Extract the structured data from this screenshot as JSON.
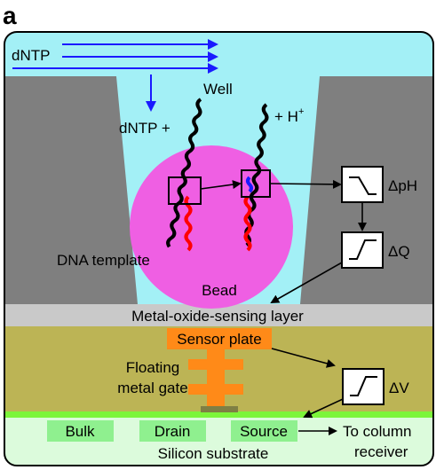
{
  "panel_letter": "a",
  "labels": {
    "dntp_flow": "dNTP",
    "well": "Well",
    "dntp_plus": "dNTP +",
    "h_plus": "+ H",
    "h_plus_sup": "+",
    "bead": "Bead",
    "dna_template": "DNA template",
    "delta_ph": "ΔpH",
    "delta_q": "ΔQ",
    "delta_v": "ΔV",
    "sensing_layer": "Metal-oxide-sensing layer",
    "sensor_plate": "Sensor plate",
    "floating_gate_line1": "Floating",
    "floating_gate_line2": "metal gate",
    "bulk": "Bulk",
    "drain": "Drain",
    "source": "Source",
    "to_column_line1": "To column",
    "to_column_line2": "receiver",
    "silicon_substrate": "Silicon substrate"
  },
  "colors": {
    "solution": "#a3f0f6",
    "well_wall": "#7f7f7f",
    "bead": "#ef5fe3",
    "sensing_layer": "#c9c9c9",
    "oxide": "#bcb455",
    "sensor_plate": "#ff8a18",
    "silicon": "#dcfbdc",
    "doped_region": "#8ff08f",
    "green_line": "#7cf53a",
    "dntp_arrow": "#1a1aff",
    "template_strand": "#ff0000",
    "incorporated_base": "#1a1aff"
  }
}
